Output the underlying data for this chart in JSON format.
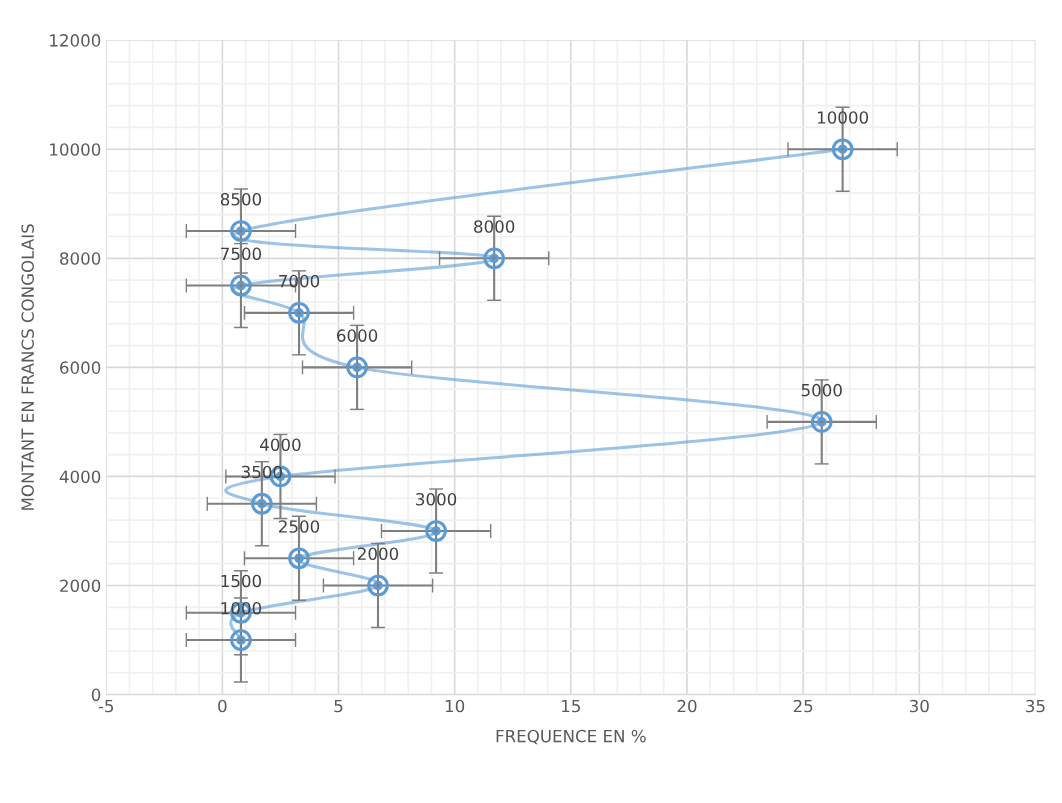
{
  "chart_data": {
    "type": "line",
    "xlabel": "FREQUENCE EN %",
    "ylabel": "MONTANT EN FRANCS CONGOLAIS",
    "x": [
      0.8,
      0.8,
      6.7,
      3.3,
      9.2,
      1.7,
      2.5,
      25.8,
      5.8,
      3.3,
      0.8,
      11.7,
      0.8,
      26.7
    ],
    "series": [
      {
        "color": "#5b9bd5",
        "values": [
          1000,
          1500,
          2000,
          2500,
          3000,
          3500,
          4000,
          5000,
          6000,
          7000,
          7500,
          8000,
          8500,
          10000
        ],
        "errors": [
          770,
          770,
          770,
          770,
          770,
          770,
          770,
          770,
          770,
          770,
          770,
          770,
          770,
          770
        ],
        "xerrors": [
          2.35,
          2.35,
          2.35,
          2.35,
          2.35,
          2.35,
          2.35,
          2.35,
          2.35,
          2.35,
          2.35,
          2.35,
          2.35,
          2.35
        ]
      }
    ],
    "xlim": [
      -5,
      35
    ],
    "xticks": [
      -5,
      0,
      5,
      10,
      15,
      20,
      25,
      30,
      35
    ],
    "ylim": [
      0,
      12000
    ],
    "yticks": [
      0,
      2000,
      4000,
      6000,
      8000,
      10000,
      12000
    ],
    "grid": true,
    "marker": "circle",
    "line_style": "solid",
    "data_labels": true
  }
}
